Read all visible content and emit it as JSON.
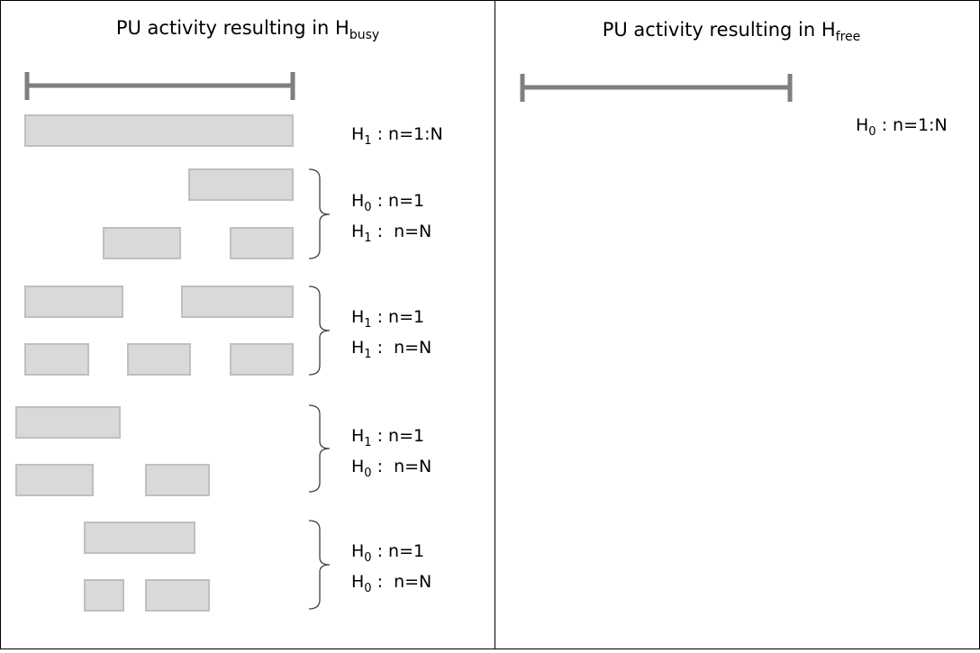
{
  "panels": [
    {
      "title": {
        "text": "PU activity resulting in H",
        "subscript": "busy"
      },
      "labels": [
        {
          "symbol": "H",
          "subscript": "1",
          "condition": " : n=1:N"
        },
        {
          "symbol": "H",
          "subscript": "0",
          "condition": " : n=1"
        },
        {
          "symbol": "H",
          "subscript": "1",
          "condition": " :  n=N"
        },
        {
          "symbol": "H",
          "subscript": "1",
          "condition": " : n=1"
        },
        {
          "symbol": "H",
          "subscript": "1",
          "condition": " :  n=N"
        },
        {
          "symbol": "H",
          "subscript": "1",
          "condition": " : n=1"
        },
        {
          "symbol": "H",
          "subscript": "0",
          "condition": " :  n=N"
        },
        {
          "symbol": "H",
          "subscript": "0",
          "condition": " : n=1"
        },
        {
          "symbol": "H",
          "subscript": "0",
          "condition": " :  n=N"
        }
      ]
    },
    {
      "title": {
        "text": "PU activity resulting in H",
        "subscript": "free"
      },
      "labels": [
        {
          "symbol": "H",
          "subscript": "0",
          "condition": " : n=1:N"
        }
      ]
    }
  ]
}
